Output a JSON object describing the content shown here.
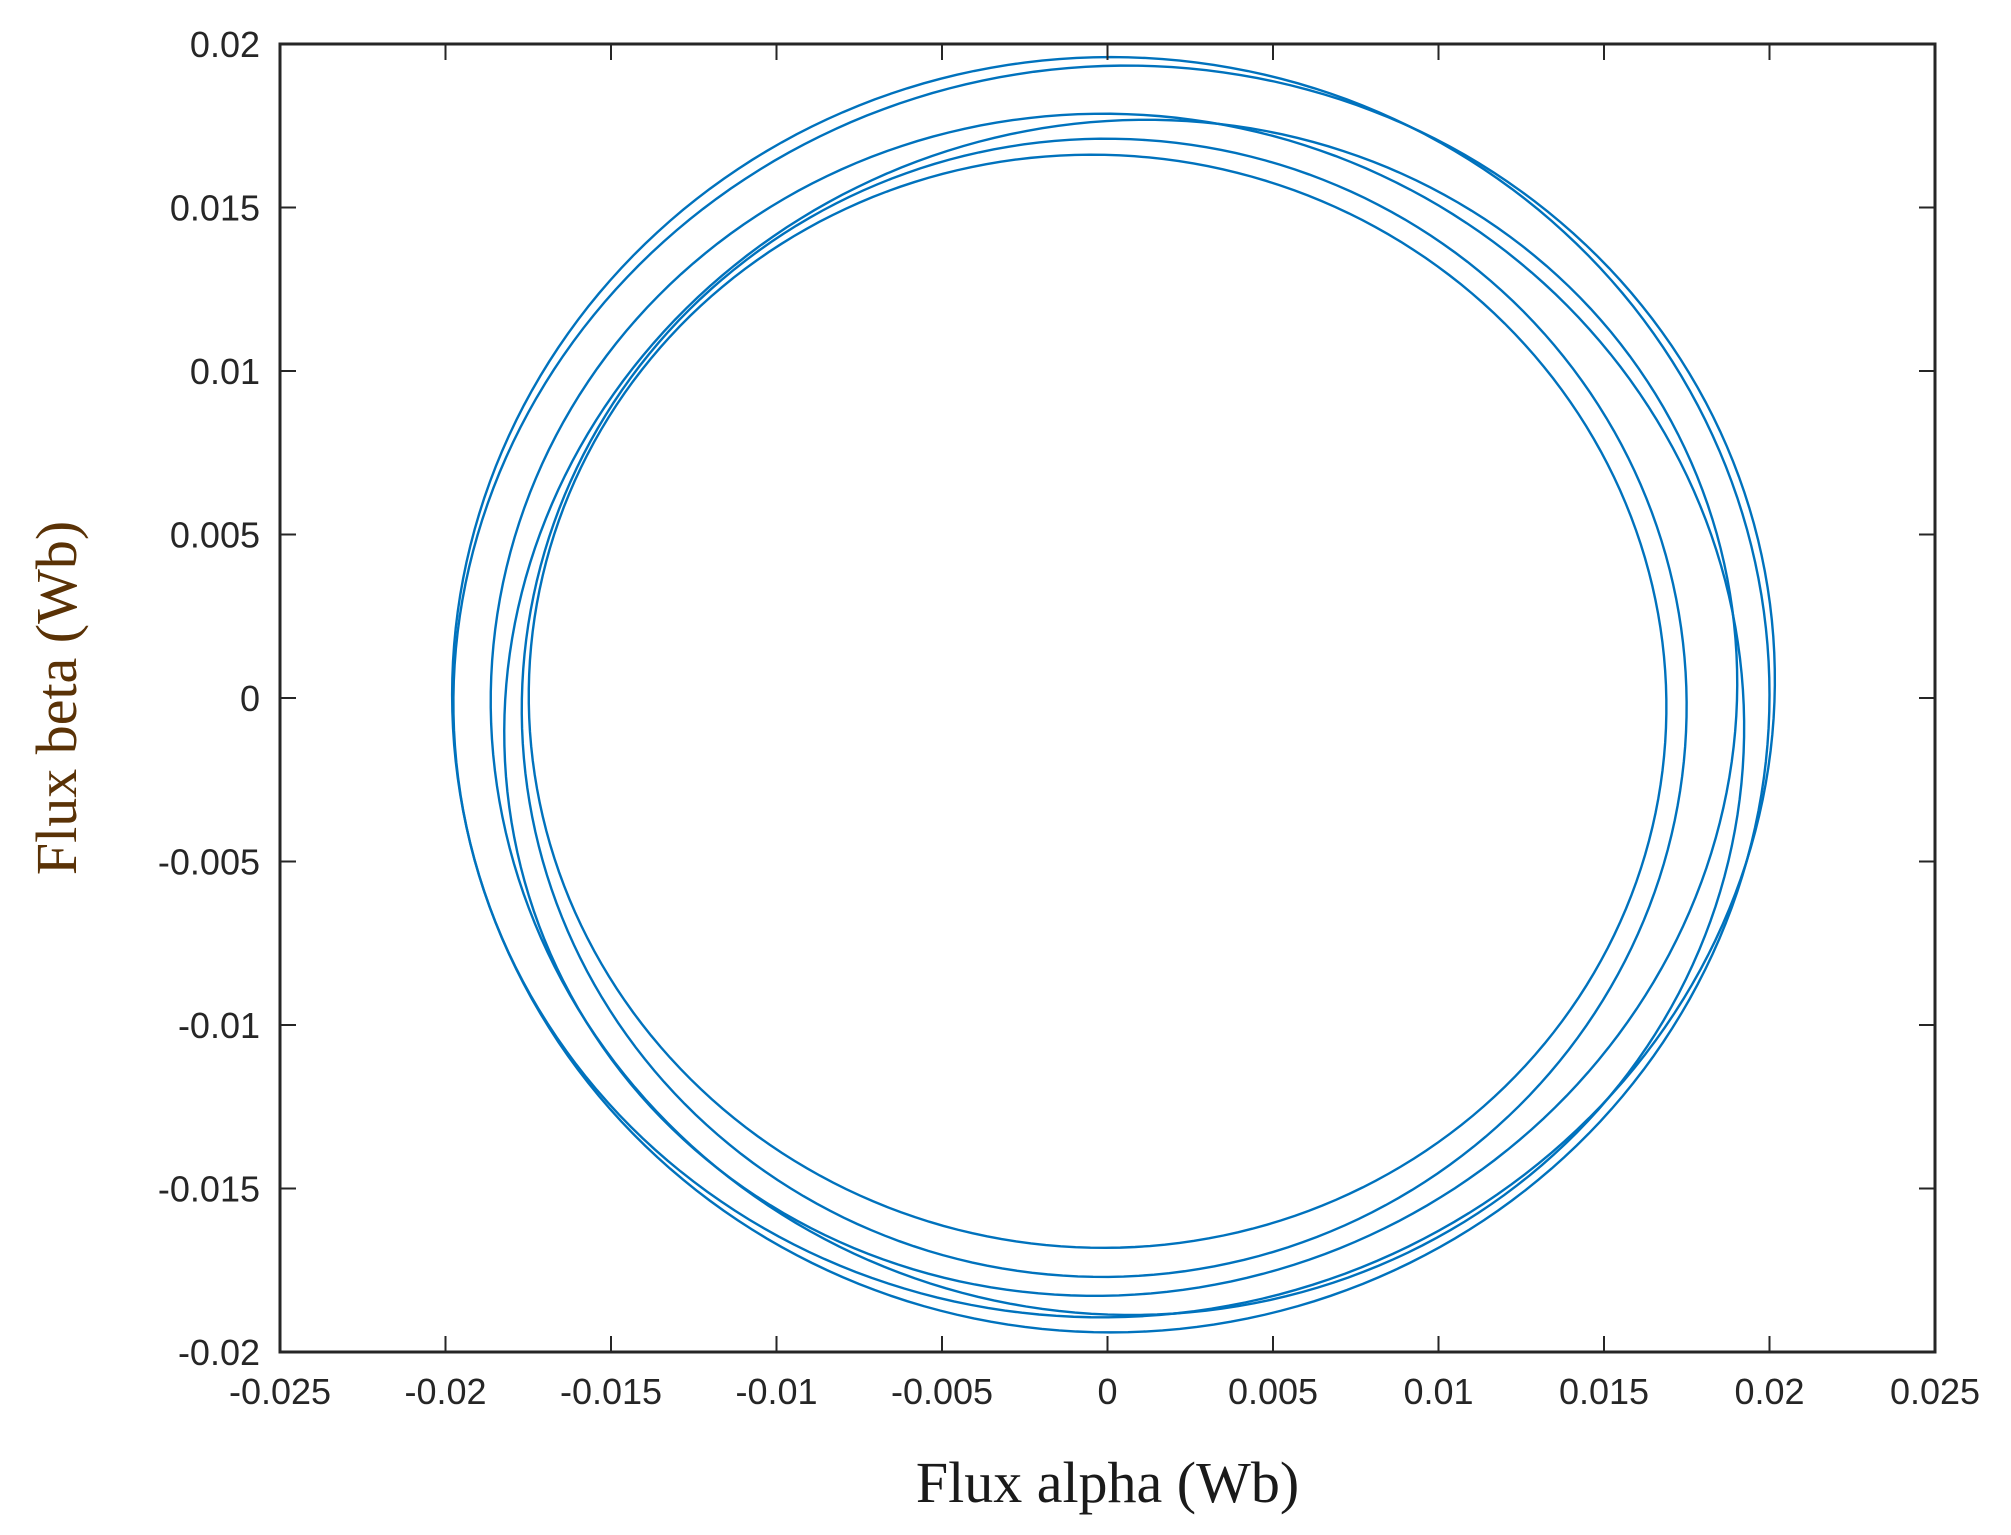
{
  "chart_data": {
    "type": "line",
    "title": "",
    "xlabel": "Flux alpha (Wb)",
    "ylabel": "Flux beta (Wb)",
    "xlim": [
      -0.025,
      0.025
    ],
    "ylim": [
      -0.02,
      0.02
    ],
    "xticks": [
      -0.025,
      -0.02,
      -0.015,
      -0.01,
      -0.005,
      0,
      0.005,
      0.01,
      0.015,
      0.02,
      0.025
    ],
    "xtick_labels": [
      "-0.025",
      "-0.02",
      "-0.015",
      "-0.01",
      "-0.005",
      "0",
      "0.005",
      "0.01",
      "0.015",
      "0.02",
      "0.025"
    ],
    "yticks": [
      0.02,
      0.015,
      0.01,
      0.005,
      0,
      -0.005,
      -0.01,
      -0.015,
      -0.02
    ],
    "ytick_labels": [
      "0.02",
      "0.015",
      "0.01",
      "0.005",
      "0",
      "-0.005",
      "-0.01",
      "-0.015",
      "-0.02"
    ],
    "grid": false,
    "legend": "none",
    "line_color": "#0072BD",
    "series": [
      {
        "description": "flux locus, several overlapping near-circular turns",
        "loops": [
          {
            "cx": 0.0001,
            "cy": 0.0001,
            "rx": 0.0199,
            "ry": 0.0195,
            "rot_deg": 0
          },
          {
            "cx": 0.0002,
            "cy": 0.0002,
            "rx": 0.02,
            "ry": 0.0191,
            "rot_deg": 12
          },
          {
            "cx": 0.0003,
            "cy": -0.0005,
            "rx": 0.019,
            "ry": 0.0183,
            "rot_deg": -18
          },
          {
            "cx": 0.0004,
            "cy": -0.0003,
            "rx": 0.0188,
            "ry": 0.0178,
            "rot_deg": 25
          },
          {
            "cx": -0.0001,
            "cy": -0.0003,
            "rx": 0.0176,
            "ry": 0.0174,
            "rot_deg": 8
          },
          {
            "cx": -0.0003,
            "cy": -0.0001,
            "rx": 0.0172,
            "ry": 0.0167,
            "rot_deg": -10
          }
        ]
      }
    ]
  }
}
